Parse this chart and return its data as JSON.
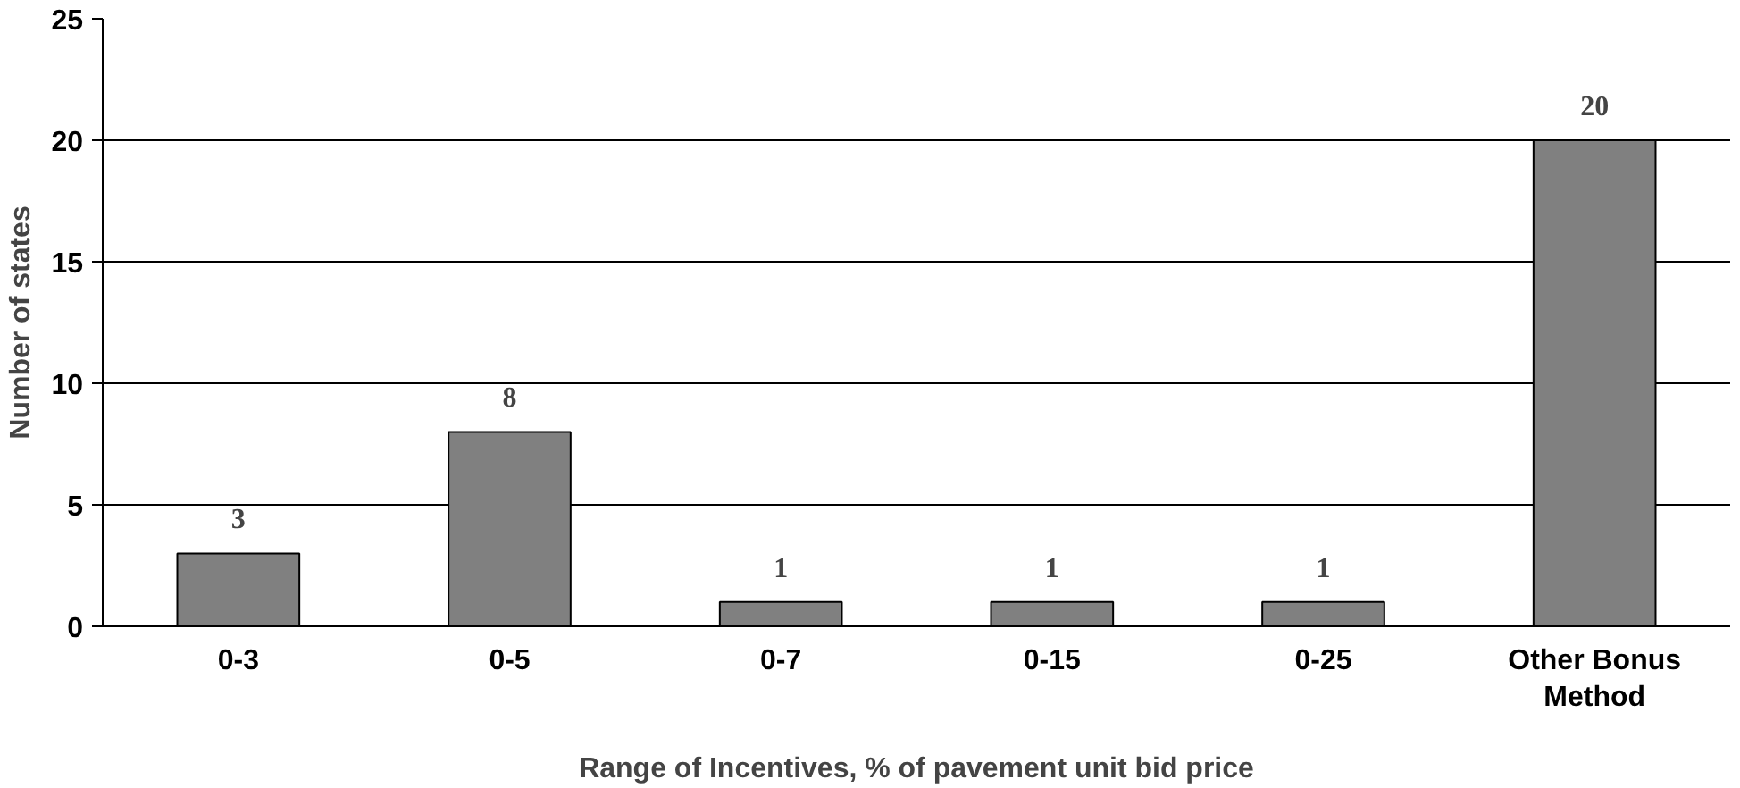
{
  "chart_data": {
    "type": "bar",
    "xlabel": "Range of Incentives, % of pavement unit bid price",
    "ylabel": "Number of states",
    "categories": [
      "0-3",
      "0-5",
      "0-7",
      "0-15",
      "0-25",
      "Other Bonus\nMethod"
    ],
    "values": [
      3,
      8,
      1,
      1,
      1,
      20
    ],
    "color": "#808080",
    "ylim": [
      0,
      25
    ],
    "yticks": [
      0,
      5,
      10,
      15,
      20,
      25
    ],
    "grid": "y",
    "data_labels": true
  }
}
